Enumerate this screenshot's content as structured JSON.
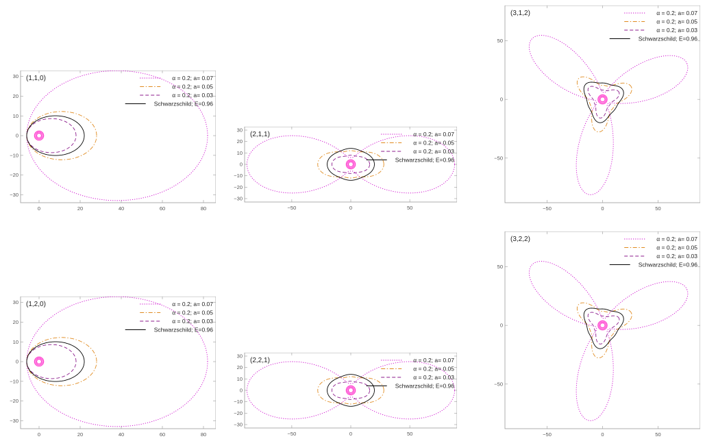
{
  "colors": {
    "a007": "#cc00cc",
    "a005": "#e08a1e",
    "a003": "#8b1a8b",
    "schw": "#000000",
    "inner": "#ff33cc"
  },
  "chart_data": [
    {
      "type": "line",
      "label": "(1,1,0)",
      "xlim": [
        -9,
        86
      ],
      "ylim": [
        -34,
        33
      ],
      "xticks": [
        0,
        20,
        40,
        60,
        80
      ],
      "yticks": [
        -30,
        -20,
        -10,
        0,
        10,
        20,
        30
      ],
      "orbit": "zoom",
      "series": [
        {
          "name": "α = 0.2; a= 0.07",
          "rp": 6,
          "ra": 82,
          "dash": "dotted",
          "color": "a007",
          "lobes": 1
        },
        {
          "name": "α = 0.2; a= 0.05",
          "rp": 6,
          "ra": 28,
          "dash": "dashdot",
          "color": "a005",
          "lobes": 1
        },
        {
          "name": "α = 0.2; a= 0.03",
          "rp": 6,
          "ra": 18,
          "dash": "dashed",
          "color": "a003",
          "lobes": 1
        },
        {
          "name": "Schwarzschild; E=0.96",
          "rp": 6,
          "ra": 22,
          "dash": "solid",
          "color": "schw",
          "lobes": 1
        }
      ]
    },
    {
      "type": "line",
      "label": "(2,1,1)",
      "xlim": [
        -90,
        90
      ],
      "ylim": [
        -33,
        33
      ],
      "xticks": [
        -50,
        0,
        50
      ],
      "yticks": [
        -30,
        -20,
        -10,
        0,
        10,
        20,
        30
      ],
      "orbit": "petal",
      "series": [
        {
          "name": "α = 0.2; a= 0.07",
          "petals": 2,
          "r1": 88,
          "r0": 6,
          "dash": "dotted",
          "color": "a007"
        },
        {
          "name": "α = 0.2; a= 0.05",
          "petals": 2,
          "r1": 28,
          "r0": 12,
          "dash": "dashdot",
          "color": "a005"
        },
        {
          "name": "α = 0.2; a= 0.03",
          "petals": 2,
          "r1": 16,
          "r0": 8,
          "dash": "dashed",
          "color": "a003"
        },
        {
          "name": "Schwarzschild; E=0.96",
          "petals": 2,
          "r1": 20,
          "r0": 14,
          "dash": "solid",
          "color": "schw"
        }
      ]
    },
    {
      "type": "line",
      "label": "(3,1,2)",
      "xlim": [
        -88,
        88
      ],
      "ylim": [
        -88,
        80
      ],
      "xticks": [
        -50,
        0,
        50
      ],
      "yticks": [
        -50,
        0,
        50
      ],
      "orbit": "petal",
      "series": [
        {
          "name": "α = 0.2; a= 0.07",
          "petals": 3,
          "r1": 82,
          "r0": 6,
          "dash": "dotted",
          "color": "a007"
        },
        {
          "name": "α = 0.2; a= 0.05",
          "petals": 3,
          "r1": 28,
          "r0": 12,
          "dash": "dashdot",
          "color": "a005"
        },
        {
          "name": "α = 0.2; a= 0.03",
          "petals": 3,
          "r1": 16,
          "r0": 8,
          "dash": "dashed",
          "color": "a003"
        },
        {
          "name": "Schwarzschild; E=0.96",
          "petals": 3,
          "r1": 20,
          "r0": 14,
          "dash": "solid",
          "color": "schw"
        }
      ]
    },
    {
      "type": "line",
      "label": "(1,2,0)",
      "xlim": [
        -9,
        86
      ],
      "ylim": [
        -34,
        33
      ],
      "xticks": [
        0,
        20,
        40,
        60,
        80
      ],
      "yticks": [
        -30,
        -20,
        -10,
        0,
        10,
        20,
        30
      ],
      "orbit": "zoom",
      "series": [
        {
          "name": "α = 0.2; a= 0.07",
          "rp": 6,
          "ra": 82,
          "dash": "dotted",
          "color": "a007",
          "lobes": 1
        },
        {
          "name": "α = 0.2; a= 0.05",
          "rp": 6,
          "ra": 28,
          "dash": "dashdot",
          "color": "a005",
          "lobes": 1
        },
        {
          "name": "α = 0.2; a= 0.03",
          "rp": 6,
          "ra": 18,
          "dash": "dashed",
          "color": "a003",
          "lobes": 1
        },
        {
          "name": "Schwarzschild; E=0.96",
          "rp": 6,
          "ra": 22,
          "dash": "solid",
          "color": "schw",
          "lobes": 1
        }
      ]
    },
    {
      "type": "line",
      "label": "(2,2,1)",
      "xlim": [
        -90,
        90
      ],
      "ylim": [
        -33,
        33
      ],
      "xticks": [
        -50,
        0,
        50
      ],
      "yticks": [
        -30,
        -20,
        -10,
        0,
        10,
        20,
        30
      ],
      "orbit": "petal",
      "series": [
        {
          "name": "α = 0.2; a= 0.07",
          "petals": 2,
          "r1": 88,
          "r0": 6,
          "dash": "dotted",
          "color": "a007"
        },
        {
          "name": "α = 0.2; a= 0.05",
          "petals": 2,
          "r1": 28,
          "r0": 12,
          "dash": "dashdot",
          "color": "a005"
        },
        {
          "name": "α = 0.2; a= 0.03",
          "petals": 2,
          "r1": 16,
          "r0": 8,
          "dash": "dashed",
          "color": "a003"
        },
        {
          "name": "Schwarzschild; E=0.96",
          "petals": 2,
          "r1": 20,
          "r0": 14,
          "dash": "solid",
          "color": "schw"
        }
      ]
    },
    {
      "type": "line",
      "label": "(3,2,2)",
      "xlim": [
        -88,
        88
      ],
      "ylim": [
        -88,
        80
      ],
      "xticks": [
        -50,
        0,
        50
      ],
      "yticks": [
        -50,
        0,
        50
      ],
      "orbit": "petal",
      "series": [
        {
          "name": "α = 0.2; a= 0.07",
          "petals": 3,
          "r1": 82,
          "r0": 6,
          "dash": "dotted",
          "color": "a007"
        },
        {
          "name": "α = 0.2; a= 0.05",
          "petals": 3,
          "r1": 28,
          "r0": 12,
          "dash": "dashdot",
          "color": "a005"
        },
        {
          "name": "α = 0.2; a= 0.03",
          "petals": 3,
          "r1": 16,
          "r0": 8,
          "dash": "dashed",
          "color": "a003"
        },
        {
          "name": "Schwarzschild; E=0.96",
          "petals": 3,
          "r1": 20,
          "r0": 14,
          "dash": "solid",
          "color": "schw"
        }
      ]
    }
  ]
}
